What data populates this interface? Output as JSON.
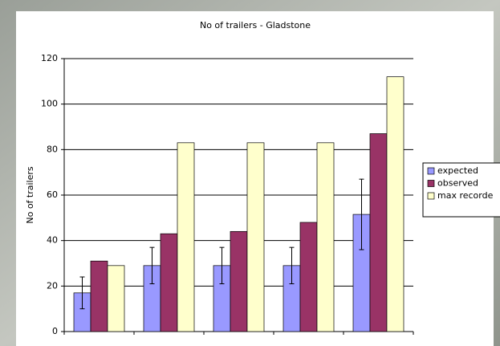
{
  "chart_data": {
    "type": "bar",
    "title": "No of trailers - Gladstone",
    "y_label": "No of trailers",
    "categories": [
      null,
      null,
      null,
      null,
      null
    ],
    "series": [
      {
        "name": "expected",
        "color": "#9999ff",
        "values": [
          17,
          29,
          29,
          29,
          51.5
        ],
        "errors": [
          7,
          8,
          8,
          8,
          15.5
        ]
      },
      {
        "name": "observed",
        "color": "#993366",
        "values": [
          31,
          43,
          44,
          48,
          87
        ]
      },
      {
        "name": "max recorde",
        "color": "#ffffcc",
        "values": [
          29,
          83,
          83,
          83,
          112
        ]
      }
    ],
    "ylim": [
      0,
      120
    ],
    "yticks": [
      0,
      20,
      40,
      60,
      80,
      100,
      120
    ],
    "grid": true,
    "legend": "right"
  }
}
